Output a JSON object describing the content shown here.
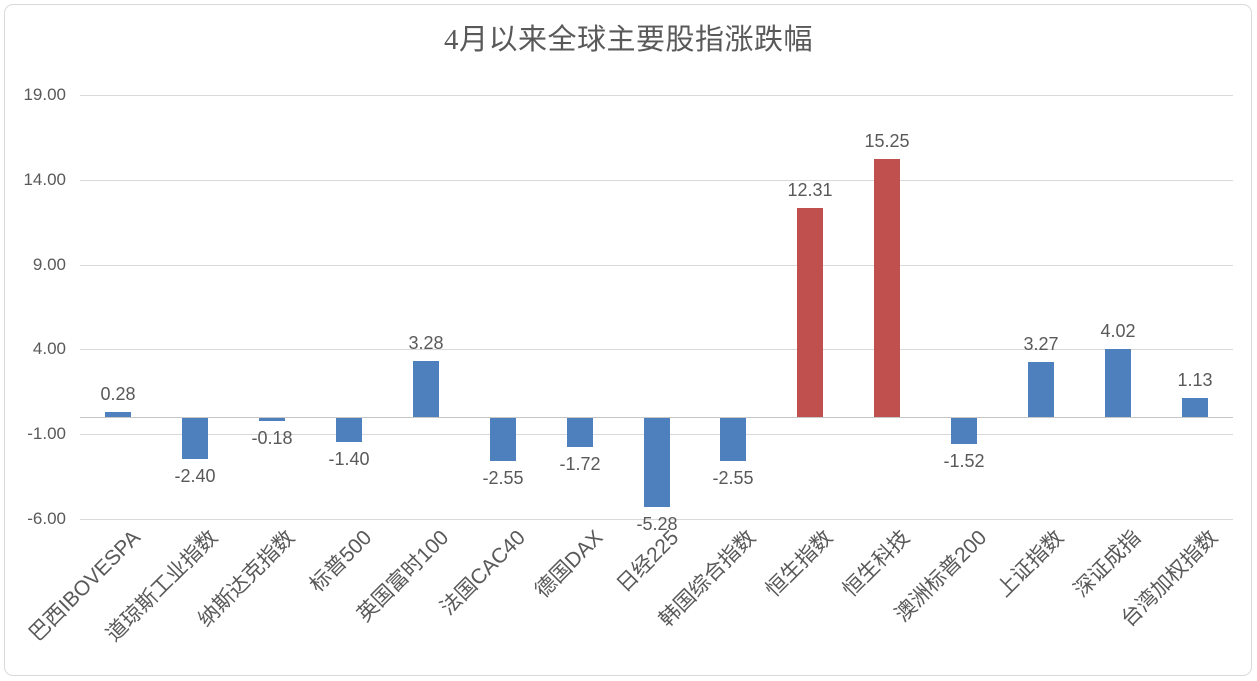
{
  "chart_data": {
    "type": "bar",
    "title": "4月以来全球主要股指涨跌幅",
    "categories": [
      "巴西IBOVESPA",
      "道琼斯工业指数",
      "纳斯达克指数",
      "标普500",
      "英国富时100",
      "法国CAC40",
      "德国DAX",
      "日经225",
      "韩国综合指数",
      "恒生指数",
      "恒生科技",
      "澳洲标普200",
      "上证指数",
      "深证成指",
      "台湾加权指数"
    ],
    "values": [
      0.28,
      -2.4,
      -0.18,
      -1.4,
      3.28,
      -2.55,
      -1.72,
      -5.28,
      -2.55,
      12.31,
      15.25,
      -1.52,
      3.27,
      4.02,
      1.13
    ],
    "data_labels": [
      "0.28",
      "-2.40",
      "-0.18",
      "-1.40",
      "3.28",
      "-2.55",
      "-1.72",
      "-5.28",
      "-2.55",
      "12.31",
      "15.25",
      "-1.52",
      "3.27",
      "4.02",
      "1.13"
    ],
    "y_ticks": [
      {
        "value": 19,
        "label": "19.00"
      },
      {
        "value": 14,
        "label": "14.00"
      },
      {
        "value": 9,
        "label": "9.00"
      },
      {
        "value": 4,
        "label": "4.00"
      },
      {
        "value": -1,
        "label": "-1.00"
      },
      {
        "value": -6,
        "label": "-6.00"
      }
    ],
    "ylim": [
      -6,
      19
    ],
    "y_major_unit": 5,
    "xlabel": "",
    "ylabel": "",
    "grid": true,
    "legend": false,
    "category_label_rotation_deg": 45,
    "colors": {
      "bar_default": "#4d80bd",
      "bar_highlight": "#c0504d",
      "gridline": "#d9d9d9",
      "axis_line": "#c6c6c6",
      "text": "#595959"
    },
    "highlight_indices": [
      9,
      10
    ]
  }
}
